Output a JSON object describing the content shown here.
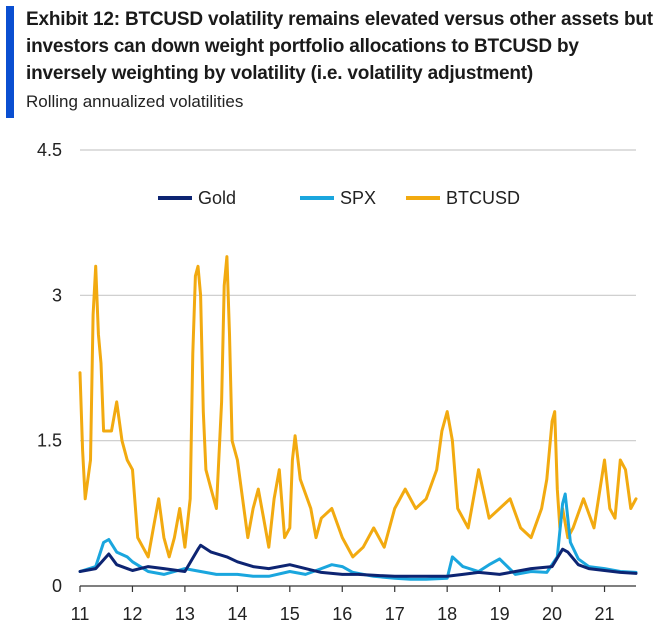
{
  "header": {
    "title": "Exhibit 12: BTCUSD volatility remains elevated versus other assets but investors can down weight portfolio allocations to BTCUSD by inversely weighting by volatility (i.e. volatility adjustment)",
    "subtitle": "Rolling annualized volatilities"
  },
  "colors": {
    "accent": "#0a4fd1",
    "gold": "#0d2472",
    "spx": "#1aa6de",
    "btcusd": "#f2aa10",
    "grid": "#c9c9c9"
  },
  "chart_data": {
    "type": "line",
    "title": "Exhibit 12: BTCUSD volatility remains elevated versus other assets",
    "xlabel": "",
    "ylabel": "",
    "xlim": [
      11,
      21.6
    ],
    "ylim": [
      0,
      4.5
    ],
    "y_ticks": [
      0,
      1.5,
      3,
      4.5
    ],
    "y_tick_labels": [
      "0",
      "1.5",
      "3",
      "4.5"
    ],
    "x_ticks": [
      11,
      12,
      13,
      14,
      15,
      16,
      17,
      18,
      19,
      20,
      21
    ],
    "x_tick_labels": [
      "11",
      "12",
      "13",
      "14",
      "15",
      "16",
      "17",
      "18",
      "19",
      "20",
      "21"
    ],
    "legend": {
      "placement": "top-left",
      "labels": [
        "Gold",
        "SPX",
        "BTCUSD"
      ]
    },
    "series": [
      {
        "name": "Gold",
        "color": "#0d2472",
        "x": [
          11.0,
          11.3,
          11.5,
          11.55,
          11.7,
          12.0,
          12.3,
          12.6,
          13.0,
          13.25,
          13.3,
          13.5,
          13.8,
          14.0,
          14.3,
          14.6,
          15.0,
          15.3,
          15.6,
          16.0,
          16.3,
          16.6,
          17.0,
          17.3,
          17.6,
          18.0,
          18.3,
          18.6,
          19.0,
          19.3,
          19.6,
          20.0,
          20.2,
          20.3,
          20.5,
          20.7,
          21.0,
          21.3,
          21.6
        ],
        "y": [
          0.15,
          0.18,
          0.3,
          0.33,
          0.22,
          0.16,
          0.2,
          0.18,
          0.15,
          0.38,
          0.42,
          0.35,
          0.3,
          0.25,
          0.2,
          0.18,
          0.22,
          0.18,
          0.14,
          0.12,
          0.12,
          0.11,
          0.1,
          0.1,
          0.1,
          0.1,
          0.12,
          0.14,
          0.12,
          0.15,
          0.18,
          0.2,
          0.38,
          0.35,
          0.22,
          0.18,
          0.16,
          0.14,
          0.13
        ]
      },
      {
        "name": "SPX",
        "color": "#1aa6de",
        "x": [
          11.0,
          11.3,
          11.45,
          11.55,
          11.7,
          11.9,
          12.0,
          12.3,
          12.6,
          13.0,
          13.3,
          13.6,
          14.0,
          14.3,
          14.6,
          15.0,
          15.3,
          15.6,
          15.8,
          16.0,
          16.2,
          16.4,
          16.6,
          17.0,
          17.3,
          17.6,
          18.0,
          18.1,
          18.3,
          18.6,
          18.8,
          19.0,
          19.3,
          19.6,
          19.9,
          20.1,
          20.2,
          20.25,
          20.35,
          20.5,
          20.7,
          21.0,
          21.3,
          21.6
        ],
        "y": [
          0.15,
          0.2,
          0.45,
          0.48,
          0.35,
          0.3,
          0.25,
          0.15,
          0.12,
          0.18,
          0.15,
          0.12,
          0.12,
          0.1,
          0.1,
          0.15,
          0.12,
          0.18,
          0.22,
          0.2,
          0.14,
          0.12,
          0.1,
          0.08,
          0.07,
          0.07,
          0.08,
          0.3,
          0.2,
          0.15,
          0.22,
          0.28,
          0.12,
          0.15,
          0.14,
          0.3,
          0.85,
          0.95,
          0.45,
          0.28,
          0.2,
          0.18,
          0.15,
          0.14
        ]
      },
      {
        "name": "BTCUSD",
        "color": "#f2aa10",
        "x": [
          11.0,
          11.05,
          11.1,
          11.2,
          11.25,
          11.3,
          11.35,
          11.4,
          11.45,
          11.5,
          11.6,
          11.7,
          11.8,
          11.9,
          12.0,
          12.1,
          12.2,
          12.3,
          12.4,
          12.5,
          12.6,
          12.7,
          12.8,
          12.9,
          13.0,
          13.1,
          13.15,
          13.2,
          13.25,
          13.3,
          13.35,
          13.4,
          13.5,
          13.6,
          13.7,
          13.75,
          13.8,
          13.85,
          13.9,
          14.0,
          14.1,
          14.2,
          14.3,
          14.4,
          14.5,
          14.6,
          14.7,
          14.8,
          14.9,
          15.0,
          15.05,
          15.1,
          15.2,
          15.4,
          15.5,
          15.6,
          15.8,
          16.0,
          16.2,
          16.4,
          16.6,
          16.8,
          17.0,
          17.2,
          17.4,
          17.6,
          17.8,
          17.9,
          18.0,
          18.1,
          18.2,
          18.4,
          18.6,
          18.8,
          19.0,
          19.2,
          19.4,
          19.6,
          19.8,
          19.9,
          20.0,
          20.05,
          20.1,
          20.15,
          20.2,
          20.3,
          20.4,
          20.6,
          20.8,
          21.0,
          21.1,
          21.2,
          21.3,
          21.4,
          21.5,
          21.6
        ],
        "y": [
          2.2,
          1.4,
          0.9,
          1.3,
          2.8,
          3.3,
          2.6,
          2.3,
          1.6,
          1.6,
          1.6,
          1.9,
          1.5,
          1.3,
          1.2,
          0.5,
          0.4,
          0.3,
          0.6,
          0.9,
          0.5,
          0.3,
          0.5,
          0.8,
          0.4,
          0.9,
          2.4,
          3.2,
          3.3,
          3.0,
          1.8,
          1.2,
          1.0,
          0.8,
          1.9,
          3.1,
          3.4,
          2.6,
          1.5,
          1.3,
          0.9,
          0.5,
          0.8,
          1.0,
          0.7,
          0.4,
          0.9,
          1.2,
          0.5,
          0.6,
          1.3,
          1.55,
          1.1,
          0.8,
          0.5,
          0.7,
          0.8,
          0.5,
          0.3,
          0.4,
          0.6,
          0.4,
          0.8,
          1.0,
          0.8,
          0.9,
          1.2,
          1.6,
          1.8,
          1.5,
          0.8,
          0.6,
          1.2,
          0.7,
          0.8,
          0.9,
          0.6,
          0.5,
          0.8,
          1.1,
          1.7,
          1.8,
          1.0,
          0.6,
          0.8,
          0.5,
          0.6,
          0.9,
          0.6,
          1.3,
          0.8,
          0.7,
          1.3,
          1.2,
          0.8,
          0.9
        ]
      }
    ]
  }
}
